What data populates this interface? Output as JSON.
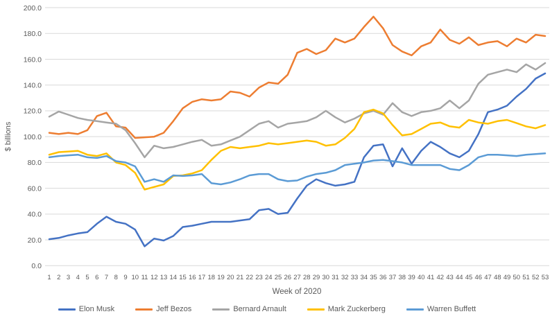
{
  "chart_data": {
    "type": "line",
    "title": "",
    "xlabel": "Week of 2020",
    "ylabel": "$ billions",
    "x": [
      1,
      2,
      3,
      4,
      5,
      6,
      7,
      8,
      9,
      10,
      11,
      12,
      13,
      14,
      15,
      16,
      17,
      18,
      19,
      20,
      21,
      22,
      23,
      24,
      25,
      26,
      27,
      28,
      29,
      30,
      31,
      32,
      33,
      34,
      35,
      36,
      37,
      38,
      39,
      40,
      41,
      42,
      43,
      44,
      45,
      46,
      47,
      48,
      49,
      50,
      51,
      52,
      53
    ],
    "ylim": [
      0,
      200
    ],
    "ytick_step": 20,
    "ytick_decimals": 1,
    "grid": true,
    "legend_position": "bottom",
    "series": [
      {
        "name": "Elon Musk",
        "color": "#4472C4",
        "values": [
          20.5,
          21.5,
          23.5,
          25,
          26,
          32.5,
          38,
          34,
          32.5,
          28,
          15,
          21,
          19.5,
          23,
          30,
          31,
          32.5,
          34,
          34,
          34,
          35,
          36,
          43,
          44,
          40,
          41,
          52,
          62,
          67,
          64,
          62,
          63,
          65,
          84,
          93,
          94,
          77,
          91,
          79,
          89,
          96,
          92,
          87,
          84,
          89,
          102,
          119,
          121,
          124,
          131,
          137,
          145,
          149
        ]
      },
      {
        "name": "Jeff Bezos",
        "color": "#ED7D31",
        "values": [
          103,
          102,
          103,
          102,
          105,
          116,
          118.5,
          108,
          107,
          99,
          99.5,
          100,
          103,
          112,
          122,
          127,
          129,
          128,
          129,
          135,
          134,
          131,
          138,
          142,
          141,
          148,
          165,
          168,
          164,
          167,
          176,
          173,
          176,
          185,
          193,
          184,
          171,
          166,
          163,
          170,
          173,
          183,
          175,
          172,
          177,
          171,
          173,
          174,
          170,
          176,
          173,
          179,
          178
        ]
      },
      {
        "name": "Bernard Arnault",
        "color": "#A5A5A5",
        "values": [
          115.5,
          119.5,
          117,
          114.5,
          113,
          112,
          111,
          110,
          105,
          95,
          84,
          93,
          91,
          92,
          94,
          96,
          97.5,
          93,
          94,
          97,
          100,
          105,
          110,
          112,
          107,
          110,
          111,
          112,
          115,
          120,
          115,
          111,
          114,
          118,
          120,
          117,
          126,
          119,
          116,
          119,
          120,
          122,
          128,
          122,
          128,
          141,
          148,
          150,
          152,
          150,
          156,
          152,
          157
        ]
      },
      {
        "name": "Mark Zuckerberg",
        "color": "#FFC000",
        "values": [
          86,
          88,
          88.5,
          89,
          86,
          85,
          87,
          80,
          78,
          72,
          59,
          61,
          63,
          69.5,
          70,
          71.5,
          74,
          82,
          89,
          92,
          91,
          92,
          93,
          95,
          94,
          95,
          96,
          97,
          96,
          93,
          94,
          99,
          106,
          119,
          121,
          118,
          109,
          101,
          102,
          106,
          110,
          111,
          108,
          107,
          113,
          111,
          110,
          112,
          113,
          110.5,
          108,
          106.5,
          109
        ]
      },
      {
        "name": "Warren Buffett",
        "color": "#5B9BD5",
        "values": [
          84,
          85,
          85.5,
          86,
          84,
          83.5,
          85,
          81,
          80,
          77,
          65,
          67,
          65,
          70,
          69.5,
          70,
          71,
          64,
          63,
          64.5,
          67,
          70,
          71,
          71,
          67,
          65.5,
          66,
          69,
          71,
          72,
          74,
          78,
          79,
          80,
          81.5,
          82,
          81,
          80,
          78,
          78,
          78,
          78,
          75,
          74,
          78,
          84,
          86,
          86,
          85.5,
          85,
          86,
          86.5,
          87
        ]
      }
    ]
  },
  "colors": {
    "background": "#FFFFFF",
    "gridline": "#D9D9D9",
    "axis_text": "#595959"
  }
}
